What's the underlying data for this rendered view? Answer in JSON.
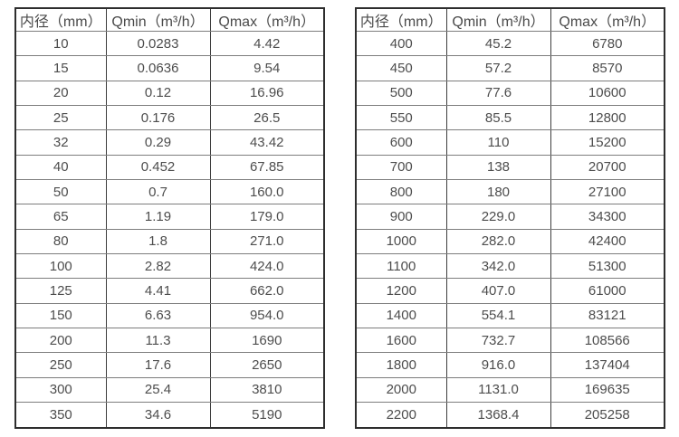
{
  "page": {
    "background_color": "#ffffff",
    "text_color": "#4a4a4a",
    "border_color": "#2e2e2e"
  },
  "tables": [
    {
      "name": "flow-rate-table-small-diameters",
      "headers": [
        "内径（mm）",
        "Qmin（m³/h）",
        "Qmax（m³/h）"
      ],
      "rows": [
        [
          "10",
          "0.0283",
          "4.42"
        ],
        [
          "15",
          "0.0636",
          "9.54"
        ],
        [
          "20",
          "0.12",
          "16.96"
        ],
        [
          "25",
          "0.176",
          "26.5"
        ],
        [
          "32",
          "0.29",
          "43.42"
        ],
        [
          "40",
          "0.452",
          "67.85"
        ],
        [
          "50",
          "0.7",
          "160.0"
        ],
        [
          "65",
          "1.19",
          "179.0"
        ],
        [
          "80",
          "1.8",
          "271.0"
        ],
        [
          "100",
          "2.82",
          "424.0"
        ],
        [
          "125",
          "4.41",
          "662.0"
        ],
        [
          "150",
          "6.63",
          "954.0"
        ],
        [
          "200",
          "11.3",
          "1690"
        ],
        [
          "250",
          "17.6",
          "2650"
        ],
        [
          "300",
          "25.4",
          "3810"
        ],
        [
          "350",
          "34.6",
          "5190"
        ]
      ]
    },
    {
      "name": "flow-rate-table-large-diameters",
      "headers": [
        "内径（mm）",
        "Qmin（m³/h）",
        "Qmax（m³/h）"
      ],
      "rows": [
        [
          "400",
          "45.2",
          "6780"
        ],
        [
          "450",
          "57.2",
          "8570"
        ],
        [
          "500",
          "77.6",
          "10600"
        ],
        [
          "550",
          "85.5",
          "12800"
        ],
        [
          "600",
          "110",
          "15200"
        ],
        [
          "700",
          "138",
          "20700"
        ],
        [
          "800",
          "180",
          "27100"
        ],
        [
          "900",
          "229.0",
          "34300"
        ],
        [
          "1000",
          "282.0",
          "42400"
        ],
        [
          "1100",
          "342.0",
          "51300"
        ],
        [
          "1200",
          "407.0",
          "61000"
        ],
        [
          "1400",
          "554.1",
          "83121"
        ],
        [
          "1600",
          "732.7",
          "108566"
        ],
        [
          "1800",
          "916.0",
          "137404"
        ],
        [
          "2000",
          "1131.0",
          "169635"
        ],
        [
          "2200",
          "1368.4",
          "205258"
        ]
      ]
    }
  ]
}
